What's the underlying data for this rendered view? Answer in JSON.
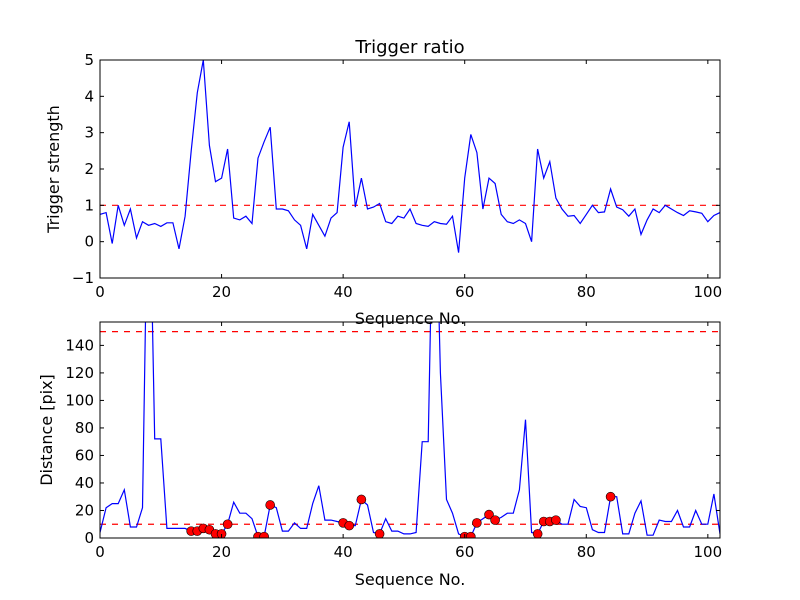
{
  "chart_data": [
    {
      "type": "line",
      "title": "Trigger ratio",
      "xlabel": "Sequence No.",
      "ylabel": "Trigger strength",
      "xlim": [
        0,
        102
      ],
      "ylim": [
        -1,
        5
      ],
      "xticks": [
        0,
        20,
        40,
        60,
        80,
        100
      ],
      "yticks": [
        -1,
        0,
        1,
        2,
        3,
        4,
        5
      ],
      "threshold": 1,
      "line_color": "#0000ff",
      "threshold_color": "#ff0000",
      "y": [
        0.75,
        0.8,
        -0.05,
        1.0,
        0.45,
        0.9,
        0.1,
        0.55,
        0.45,
        0.5,
        0.42,
        0.52,
        0.52,
        -0.2,
        0.7,
        2.5,
        4.1,
        5.0,
        2.65,
        1.65,
        1.75,
        2.55,
        0.65,
        0.6,
        0.7,
        0.5,
        2.3,
        2.75,
        3.15,
        0.9,
        0.9,
        0.85,
        0.6,
        0.45,
        -0.2,
        0.75,
        0.45,
        0.15,
        0.65,
        0.8,
        2.6,
        3.3,
        0.95,
        1.75,
        0.9,
        0.95,
        1.05,
        0.55,
        0.5,
        0.7,
        0.65,
        0.9,
        0.5,
        0.45,
        0.42,
        0.55,
        0.5,
        0.48,
        0.7,
        -0.3,
        1.75,
        2.95,
        2.45,
        0.9,
        1.75,
        1.6,
        0.75,
        0.55,
        0.5,
        0.6,
        0.5,
        0.0,
        2.55,
        1.75,
        2.2,
        1.2,
        0.9,
        0.7,
        0.72,
        0.5,
        0.75,
        1.0,
        0.8,
        0.82,
        1.45,
        0.95,
        0.88,
        0.7,
        0.9,
        0.2,
        0.6,
        0.9,
        0.8,
        1.0,
        0.9,
        0.8,
        0.72,
        0.85,
        0.82,
        0.78,
        0.55,
        0.72,
        0.8
      ]
    },
    {
      "type": "line",
      "xlabel": "Sequence No.",
      "ylabel": "Distance [pix]",
      "xlim": [
        0,
        102
      ],
      "ylim": [
        0,
        157
      ],
      "xticks": [
        0,
        20,
        40,
        60,
        80,
        100
      ],
      "yticks": [
        0,
        20,
        40,
        60,
        80,
        100,
        120,
        140
      ],
      "thresholds": [
        10,
        150
      ],
      "line_color": "#0000ff",
      "marker_color": "#ff0000",
      "y": [
        4,
        22,
        25,
        25,
        35,
        8,
        8,
        22,
        300,
        72,
        72,
        7,
        7,
        7,
        7,
        5,
        5,
        7,
        6,
        3,
        3,
        10,
        26,
        18,
        18,
        14,
        1,
        1,
        24,
        22,
        5,
        5,
        11,
        7,
        7,
        25,
        38,
        13,
        13,
        12,
        11,
        9,
        9,
        28,
        24,
        4,
        3,
        14,
        5,
        5,
        3,
        3,
        4,
        70,
        70,
        300,
        120,
        28,
        18,
        3,
        1,
        1,
        11,
        14,
        17,
        13,
        15,
        18,
        18,
        35,
        86,
        4,
        3,
        12,
        12,
        13,
        10,
        10,
        28,
        23,
        22,
        6,
        4,
        4,
        30,
        30,
        3,
        3,
        18,
        27,
        2,
        2,
        13,
        12,
        12,
        20,
        8,
        8,
        20,
        10,
        10,
        32,
        3
      ],
      "marker_indices": [
        15,
        16,
        17,
        18,
        19,
        20,
        21,
        26,
        27,
        28,
        40,
        41,
        43,
        46,
        60,
        61,
        62,
        64,
        65,
        72,
        73,
        74,
        75,
        84
      ]
    }
  ]
}
